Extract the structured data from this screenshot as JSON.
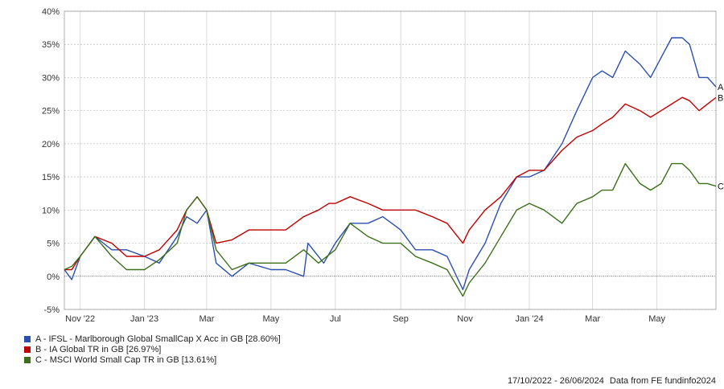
{
  "chart_data": {
    "type": "line",
    "y_ticks": [
      "40%",
      "35%",
      "30%",
      "25%",
      "20%",
      "15%",
      "10%",
      "5%",
      "0%",
      "-5%"
    ],
    "y_values": [
      40,
      35,
      30,
      25,
      20,
      15,
      10,
      5,
      0,
      -5
    ],
    "ylim": [
      -5,
      40
    ],
    "x_ticks": [
      "Nov '22",
      "Jan '23",
      "Mar",
      "May",
      "Jul",
      "Sep",
      "Nov",
      "Jan '24",
      "Mar",
      "May"
    ],
    "x_tick_dates": [
      "2022-11-01",
      "2023-01-01",
      "2023-03-01",
      "2023-05-01",
      "2023-07-01",
      "2023-09-01",
      "2023-11-01",
      "2024-01-01",
      "2024-03-01",
      "2024-05-01"
    ],
    "x_range": [
      "2022-10-17",
      "2024-06-26"
    ],
    "grid": true,
    "series": [
      {
        "name": "A - IFSL - Marlborough Global SmallCap X Acc in GB [28.60%]",
        "end_label": "A",
        "color": "#2b4fae",
        "points": [
          [
            "2022-10-17",
            1
          ],
          [
            "2022-10-24",
            -0.5
          ],
          [
            "2022-11-01",
            3
          ],
          [
            "2022-11-15",
            6
          ],
          [
            "2022-12-01",
            4
          ],
          [
            "2022-12-15",
            4
          ],
          [
            "2023-01-01",
            3
          ],
          [
            "2023-01-15",
            2
          ],
          [
            "2023-02-01",
            6
          ],
          [
            "2023-02-10",
            9
          ],
          [
            "2023-02-20",
            8
          ],
          [
            "2023-03-01",
            10
          ],
          [
            "2023-03-10",
            2
          ],
          [
            "2023-03-25",
            0
          ],
          [
            "2023-04-10",
            2
          ],
          [
            "2023-05-01",
            1
          ],
          [
            "2023-05-15",
            1
          ],
          [
            "2023-06-01",
            0
          ],
          [
            "2023-06-05",
            5
          ],
          [
            "2023-06-20",
            2
          ],
          [
            "2023-07-01",
            5
          ],
          [
            "2023-07-15",
            8
          ],
          [
            "2023-08-01",
            8
          ],
          [
            "2023-08-15",
            9
          ],
          [
            "2023-09-01",
            7
          ],
          [
            "2023-09-15",
            4
          ],
          [
            "2023-10-01",
            4
          ],
          [
            "2023-10-15",
            3
          ],
          [
            "2023-10-30",
            -2
          ],
          [
            "2023-11-05",
            1
          ],
          [
            "2023-11-20",
            5
          ],
          [
            "2023-12-05",
            11
          ],
          [
            "2023-12-20",
            15
          ],
          [
            "2024-01-01",
            15
          ],
          [
            "2024-01-15",
            16
          ],
          [
            "2024-02-01",
            20
          ],
          [
            "2024-02-15",
            25
          ],
          [
            "2024-03-01",
            30
          ],
          [
            "2024-03-10",
            31
          ],
          [
            "2024-03-20",
            30
          ],
          [
            "2024-04-01",
            34
          ],
          [
            "2024-04-15",
            32
          ],
          [
            "2024-04-25",
            30
          ],
          [
            "2024-05-05",
            33
          ],
          [
            "2024-05-15",
            36
          ],
          [
            "2024-05-25",
            36
          ],
          [
            "2024-06-01",
            35
          ],
          [
            "2024-06-10",
            30
          ],
          [
            "2024-06-18",
            30
          ],
          [
            "2024-06-26",
            28.6
          ]
        ]
      },
      {
        "name": "B - IA Global TR in GB [26.97%]",
        "end_label": "B",
        "color": "#c00000",
        "points": [
          [
            "2022-10-17",
            1
          ],
          [
            "2022-10-24",
            1
          ],
          [
            "2022-11-01",
            3
          ],
          [
            "2022-11-15",
            6
          ],
          [
            "2022-12-01",
            5
          ],
          [
            "2022-12-15",
            3
          ],
          [
            "2023-01-01",
            3
          ],
          [
            "2023-01-15",
            4
          ],
          [
            "2023-02-01",
            7
          ],
          [
            "2023-02-10",
            10
          ],
          [
            "2023-02-20",
            12
          ],
          [
            "2023-03-01",
            10
          ],
          [
            "2023-03-10",
            5
          ],
          [
            "2023-03-25",
            5.5
          ],
          [
            "2023-04-10",
            7
          ],
          [
            "2023-05-01",
            7
          ],
          [
            "2023-05-15",
            7
          ],
          [
            "2023-06-01",
            9
          ],
          [
            "2023-06-15",
            10
          ],
          [
            "2023-06-25",
            11
          ],
          [
            "2023-07-01",
            11
          ],
          [
            "2023-07-15",
            12
          ],
          [
            "2023-08-01",
            11
          ],
          [
            "2023-08-15",
            10
          ],
          [
            "2023-09-01",
            10
          ],
          [
            "2023-09-15",
            10
          ],
          [
            "2023-10-01",
            9
          ],
          [
            "2023-10-15",
            8
          ],
          [
            "2023-10-30",
            5
          ],
          [
            "2023-11-05",
            7
          ],
          [
            "2023-11-20",
            10
          ],
          [
            "2023-12-05",
            12
          ],
          [
            "2023-12-20",
            15
          ],
          [
            "2024-01-01",
            16
          ],
          [
            "2024-01-15",
            16
          ],
          [
            "2024-02-01",
            19
          ],
          [
            "2024-02-15",
            21
          ],
          [
            "2024-03-01",
            22
          ],
          [
            "2024-03-10",
            23
          ],
          [
            "2024-03-20",
            24
          ],
          [
            "2024-04-01",
            26
          ],
          [
            "2024-04-15",
            25
          ],
          [
            "2024-04-25",
            24
          ],
          [
            "2024-05-05",
            25
          ],
          [
            "2024-05-15",
            26
          ],
          [
            "2024-05-25",
            27
          ],
          [
            "2024-06-01",
            26.5
          ],
          [
            "2024-06-10",
            25
          ],
          [
            "2024-06-18",
            26
          ],
          [
            "2024-06-26",
            26.97
          ]
        ]
      },
      {
        "name": "C - MSCI World Small Cap TR in GB [13.61%]",
        "end_label": "C",
        "color": "#3b6f1a",
        "points": [
          [
            "2022-10-17",
            1
          ],
          [
            "2022-10-24",
            1.5
          ],
          [
            "2022-11-01",
            3
          ],
          [
            "2022-11-15",
            6
          ],
          [
            "2022-12-01",
            3
          ],
          [
            "2022-12-15",
            1
          ],
          [
            "2023-01-01",
            1
          ],
          [
            "2023-01-15",
            2.5
          ],
          [
            "2023-02-01",
            5
          ],
          [
            "2023-02-10",
            10
          ],
          [
            "2023-02-20",
            12
          ],
          [
            "2023-03-01",
            10
          ],
          [
            "2023-03-10",
            4
          ],
          [
            "2023-03-25",
            1
          ],
          [
            "2023-04-10",
            2
          ],
          [
            "2023-05-01",
            2
          ],
          [
            "2023-05-15",
            2
          ],
          [
            "2023-06-01",
            4
          ],
          [
            "2023-06-15",
            2
          ],
          [
            "2023-07-01",
            4
          ],
          [
            "2023-07-15",
            8
          ],
          [
            "2023-08-01",
            6
          ],
          [
            "2023-08-15",
            5
          ],
          [
            "2023-09-01",
            5
          ],
          [
            "2023-09-15",
            3
          ],
          [
            "2023-10-01",
            2
          ],
          [
            "2023-10-15",
            1
          ],
          [
            "2023-10-30",
            -3
          ],
          [
            "2023-11-05",
            -1
          ],
          [
            "2023-11-20",
            2
          ],
          [
            "2023-12-05",
            6
          ],
          [
            "2023-12-20",
            10
          ],
          [
            "2024-01-01",
            11
          ],
          [
            "2024-01-15",
            10
          ],
          [
            "2024-02-01",
            8
          ],
          [
            "2024-02-15",
            11
          ],
          [
            "2024-03-01",
            12
          ],
          [
            "2024-03-10",
            13
          ],
          [
            "2024-03-20",
            13
          ],
          [
            "2024-04-01",
            17
          ],
          [
            "2024-04-15",
            14
          ],
          [
            "2024-04-25",
            13
          ],
          [
            "2024-05-05",
            14
          ],
          [
            "2024-05-15",
            17
          ],
          [
            "2024-05-25",
            17
          ],
          [
            "2024-06-01",
            16
          ],
          [
            "2024-06-10",
            14
          ],
          [
            "2024-06-18",
            14
          ],
          [
            "2024-06-26",
            13.61
          ]
        ]
      }
    ]
  },
  "legend": {
    "items": [
      {
        "label": "A - IFSL - Marlborough Global SmallCap X Acc in GB [28.60%]",
        "color": "#2b4fae"
      },
      {
        "label": "B - IA Global TR in GB [26.97%]",
        "color": "#c00000"
      },
      {
        "label": "C - MSCI World Small Cap TR in GB [13.61%]",
        "color": "#3b6f1a"
      }
    ]
  },
  "footer": {
    "date_range": "17/10/2022 - 26/06/2024",
    "source": "Data from FE fundinfo2024"
  }
}
